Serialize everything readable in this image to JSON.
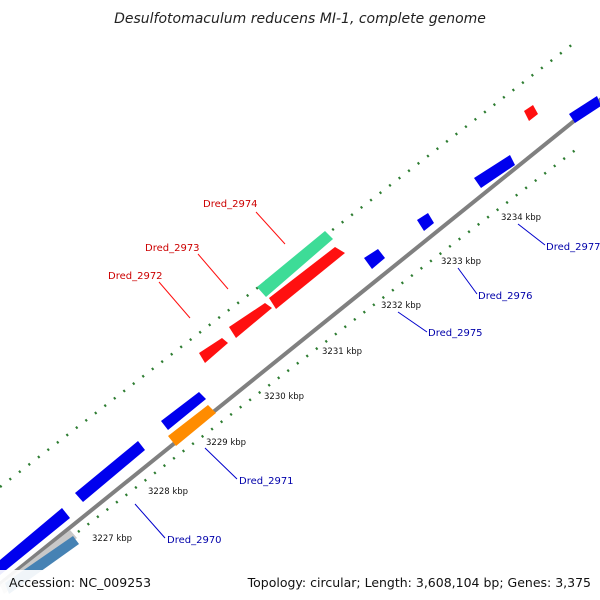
{
  "title": "Desulfotomaculum reducens MI-1, complete genome",
  "footer": {
    "accession": "Accession: NC_009253",
    "topology": "Topology: circular; Length: 3,608,104 bp; Genes: 3,375"
  },
  "colors": {
    "backbone": "#808080",
    "tick": "#2e7d32",
    "forward_gene": "#0000ee",
    "hit_gene": "#ff1010",
    "highlight_teal": "#3ddc97",
    "highlight_orange": "#ff8c00",
    "rna_light": "#c8c8c8",
    "rna_steel": "#4682b4",
    "label_red": "#cc0000",
    "label_blue": "#0000aa"
  },
  "scale_labels": [
    "3227 kbp",
    "3228 kbp",
    "3229 kbp",
    "3230 kbp",
    "3231 kbp",
    "3232 kbp",
    "3233 kbp",
    "3234 kbp"
  ],
  "gene_labels": {
    "red": [
      "Dred_2974",
      "Dred_2973",
      "Dred_2972"
    ],
    "blue": [
      "Dred_2970",
      "Dred_2971",
      "Dred_2975",
      "Dred_2976",
      "Dred_2977"
    ]
  }
}
